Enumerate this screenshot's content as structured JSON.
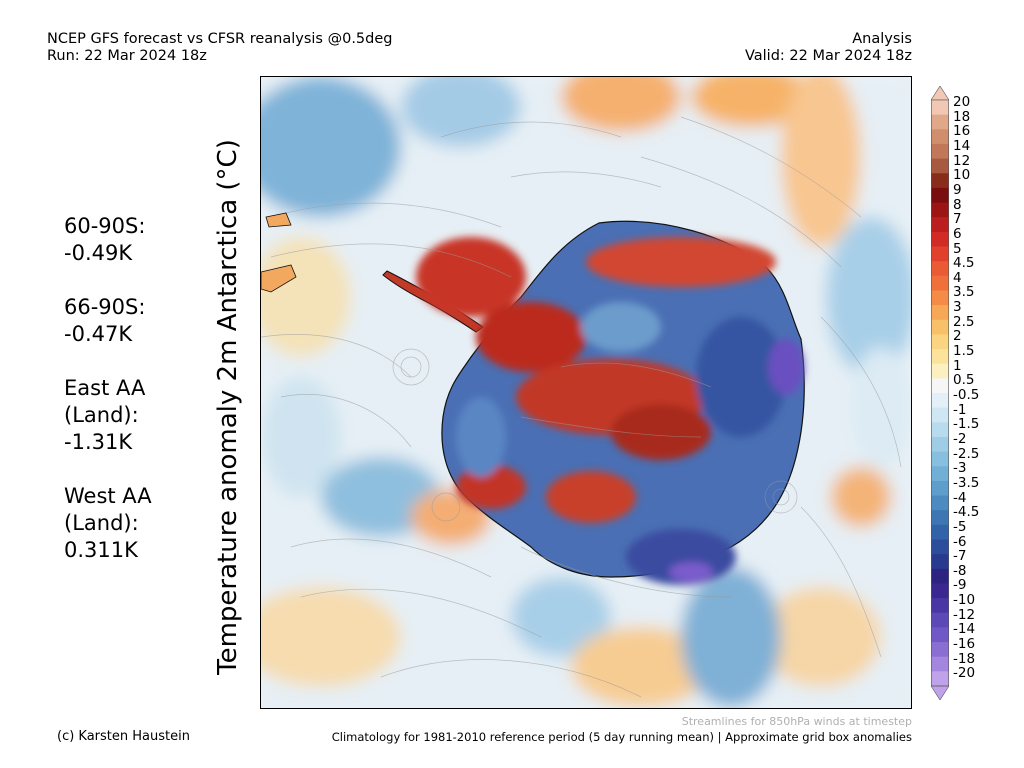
{
  "header": {
    "left_line1": "NCEP GFS forecast vs CFSR reanalysis @0.5deg",
    "left_line2": "Run: 22 Mar 2024 18z",
    "right_line1": "Analysis",
    "right_line2": "Valid: 22 Mar 2024 18z"
  },
  "ylabel": "Temperature anomaly 2m Antarctica (°C)",
  "stats": [
    {
      "lines": [
        "60-90S:",
        " -0.49K"
      ]
    },
    {
      "lines": [
        "66-90S:",
        " -0.47K"
      ]
    },
    {
      "lines": [
        "East AA",
        " (Land):",
        " -1.31K"
      ]
    },
    {
      "lines": [
        "West AA",
        " (Land):",
        " 0.311K"
      ]
    }
  ],
  "colorbar": {
    "labels": [
      "20",
      "18",
      "16",
      "14",
      "12",
      "10",
      "9",
      "8",
      "7",
      "6",
      "5",
      "4.5",
      "4",
      "3.5",
      "3",
      "2.5",
      "2",
      "1.5",
      "1",
      "0.5",
      "-0.5",
      "-1",
      "-1.5",
      "-2",
      "-2.5",
      "-3",
      "-3.5",
      "-4",
      "-4.5",
      "-5",
      "-6",
      "-7",
      "-8",
      "-9",
      "-10",
      "-12",
      "-14",
      "-16",
      "-18",
      "-20"
    ],
    "colors": [
      "#f0c8b4",
      "#e0a888",
      "#d08e6c",
      "#c07858",
      "#a85a40",
      "#8a2c1c",
      "#7a0d0d",
      "#9c1414",
      "#bb1e1e",
      "#d22a24",
      "#e0402c",
      "#ea5a34",
      "#f0703c",
      "#f48c48",
      "#f6a856",
      "#f8c068",
      "#fad480",
      "#fbe39c",
      "#fcefc0",
      "#f6f6f6",
      "#e4f0f8",
      "#cfe6f3",
      "#b8dbee",
      "#a0cde6",
      "#88bede",
      "#72afd6",
      "#5e9ecc",
      "#4c8ac0",
      "#3e76b4",
      "#3262a8",
      "#2c4c9c",
      "#283a90",
      "#2c2480",
      "#3a2890",
      "#4a36a4",
      "#5c48b6",
      "#7058c6",
      "#8a6ed2",
      "#a486de",
      "#c0a2ea"
    ]
  },
  "footer": {
    "credit": "(c) Karsten Haustein",
    "climatology": "Climatology for 1981-2010 reference period (5 day running mean) | Approximate grid box anomalies",
    "streamlines": "Streamlines for 850hPa winds at timestep"
  }
}
